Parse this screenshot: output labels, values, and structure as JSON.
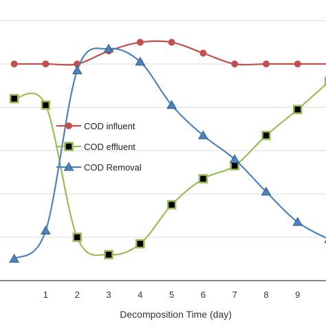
{
  "chart_data": {
    "type": "line",
    "xlabel": "Decomposition Time (day)",
    "ylabel": "",
    "x": [
      0,
      1,
      2,
      3,
      4,
      5,
      6,
      7,
      8,
      9,
      10
    ],
    "x_ticks": [
      "1",
      "2",
      "3",
      "4",
      "5",
      "6",
      "7",
      "8",
      "9"
    ],
    "xlim": [
      -0.45,
      9.9
    ],
    "ylim": [
      0,
      6
    ],
    "grid": true,
    "legend_position": "center-left",
    "series": [
      {
        "name": "COD influent",
        "color": "#c0504d",
        "marker": "circle",
        "values": [
          5,
          5,
          5,
          5.3,
          5.5,
          5.5,
          5.25,
          5,
          5,
          5,
          5
        ]
      },
      {
        "name": "COD effluent",
        "color": "#9bbb59",
        "marker": "square",
        "values": [
          4.2,
          4.05,
          1.0,
          0.6,
          0.85,
          1.75,
          2.35,
          2.65,
          3.35,
          3.95,
          4.6
        ]
      },
      {
        "name": "COD Removal",
        "color": "#4f81bd",
        "marker": "triangle",
        "values": [
          0.5,
          1.15,
          4.85,
          5.35,
          5.05,
          4.05,
          3.35,
          2.8,
          2.05,
          1.35,
          0.95
        ]
      }
    ]
  }
}
